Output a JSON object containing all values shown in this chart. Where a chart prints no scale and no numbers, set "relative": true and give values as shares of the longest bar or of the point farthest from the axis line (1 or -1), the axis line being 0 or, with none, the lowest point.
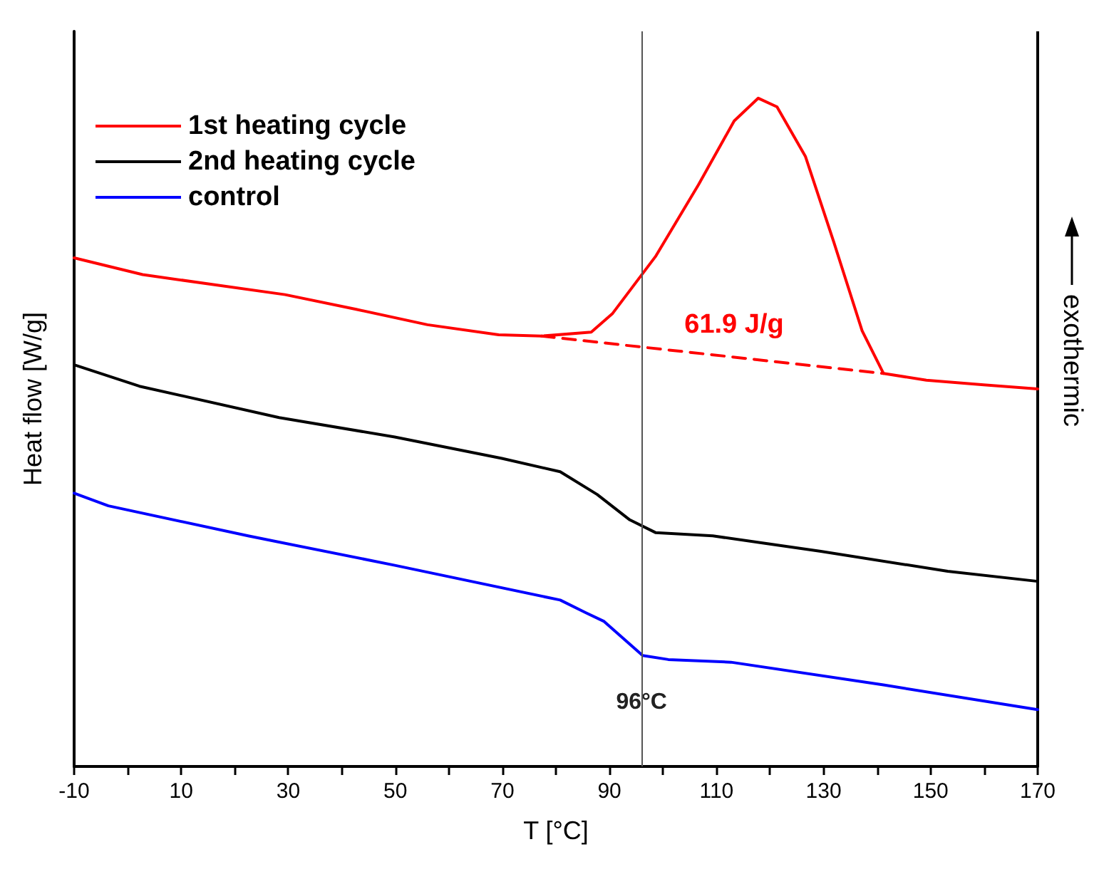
{
  "chart_data": {
    "type": "line",
    "relative": true,
    "xlabel": "T [°C]",
    "ylabel": "Heat flow [W/g]",
    "xlim": [
      -10,
      170
    ],
    "xticks": [
      -10,
      {
        "value": 0,
        "label": null
      },
      10,
      {
        "value": 20,
        "label": null
      },
      30,
      {
        "value": 40,
        "label": null
      },
      50,
      {
        "value": 60,
        "label": null
      },
      70,
      {
        "value": 80,
        "label": null
      },
      90,
      {
        "value": 100,
        "label": null
      },
      110,
      {
        "value": 120,
        "label": null
      },
      130,
      {
        "value": 140,
        "label": null
      },
      150,
      {
        "value": 160,
        "label": null
      },
      170
    ],
    "tick_labels": "x",
    "grid": false,
    "legend": "top left",
    "marker": "none",
    "line_style": "solid",
    "series": [
      {
        "name": "1st heating cycle",
        "color": "#ff0000",
        "x": [
          -10,
          2.8,
          16,
          29.4,
          42.7,
          56,
          69.3,
          77.3,
          86.6,
          90.6,
          98.6,
          106.6,
          113.3,
          117.8,
          121.3,
          126.6,
          131.9,
          137.2,
          141.2,
          149.2,
          159.9,
          170
        ],
        "values": [
          0.761,
          0.736,
          0.721,
          0.706,
          0.684,
          0.661,
          0.646,
          0.644,
          0.65,
          0.678,
          0.763,
          0.87,
          0.966,
          1,
          0.987,
          0.913,
          0.785,
          0.652,
          0.588,
          0.578,
          0.571,
          0.565
        ]
      },
      {
        "name": "2nd heating cycle",
        "color": "#000000",
        "x": [
          -10,
          2.2,
          28.3,
          49.9,
          69.9,
          80.8,
          87.7,
          93.8,
          98.6,
          109.3,
          129.5,
          153.2,
          170
        ],
        "values": [
          0.601,
          0.569,
          0.522,
          0.493,
          0.461,
          0.441,
          0.407,
          0.369,
          0.35,
          0.345,
          0.322,
          0.292,
          0.277
        ]
      },
      {
        "name": "control",
        "color": "#0000ff",
        "x": [
          -10,
          -3.6,
          22.5,
          49.9,
          80.8,
          85.6,
          89,
          96.2,
          101,
          112.7,
          141.2,
          170
        ],
        "values": [
          0.409,
          0.39,
          0.345,
          0.301,
          0.249,
          0.23,
          0.217,
          0.166,
          0.16,
          0.156,
          0.122,
          0.085
        ]
      },
      {
        "color": "#ff0000",
        "line_style": "dashed",
        "x": [
          77.3,
          141.2
        ],
        "values": [
          0.644,
          0.588
        ]
      }
    ],
    "ref_lines": [
      {
        "axis": "x",
        "value": 96,
        "label": "96°C",
        "color": "#555555"
      }
    ],
    "annotations": [
      "61.9 J/g",
      "exothermic"
    ]
  }
}
